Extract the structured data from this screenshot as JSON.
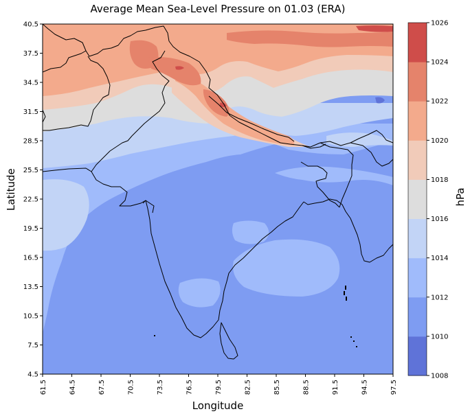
{
  "title": "Average Mean Sea-Level Pressure on 01.03 (ERA)",
  "xlabel": "Longitude",
  "ylabel": "Latitude",
  "colorbar_label": "hPa",
  "chart_data": {
    "type": "heatmap",
    "title": "Average Mean Sea-Level Pressure on 01.03 (ERA)",
    "xlabel": "Longitude",
    "ylabel": "Latitude",
    "xlim": [
      61.5,
      97.5
    ],
    "ylim": [
      4.5,
      40.5
    ],
    "x_ticks": [
      "61.5",
      "64.5",
      "67.5",
      "70.5",
      "73.5",
      "76.5",
      "79.5",
      "82.5",
      "85.5",
      "88.5",
      "91.5",
      "94.5",
      "97.5"
    ],
    "y_ticks": [
      "4.5",
      "7.5",
      "10.5",
      "13.5",
      "16.5",
      "19.5",
      "22.5",
      "25.5",
      "28.5",
      "31.5",
      "34.5",
      "37.5",
      "40.5"
    ],
    "colorbar": {
      "label": "hPa",
      "levels": [
        1008,
        1010,
        1012,
        1014,
        1016,
        1018,
        1020,
        1022,
        1024,
        1026
      ],
      "colors": [
        "#5f73d8",
        "#7e9cf2",
        "#a0bbfb",
        "#c2d4f6",
        "#dddddd",
        "#f1cbb9",
        "#f3aa8c",
        "#e5836b",
        "#cf4d4a"
      ]
    }
  }
}
